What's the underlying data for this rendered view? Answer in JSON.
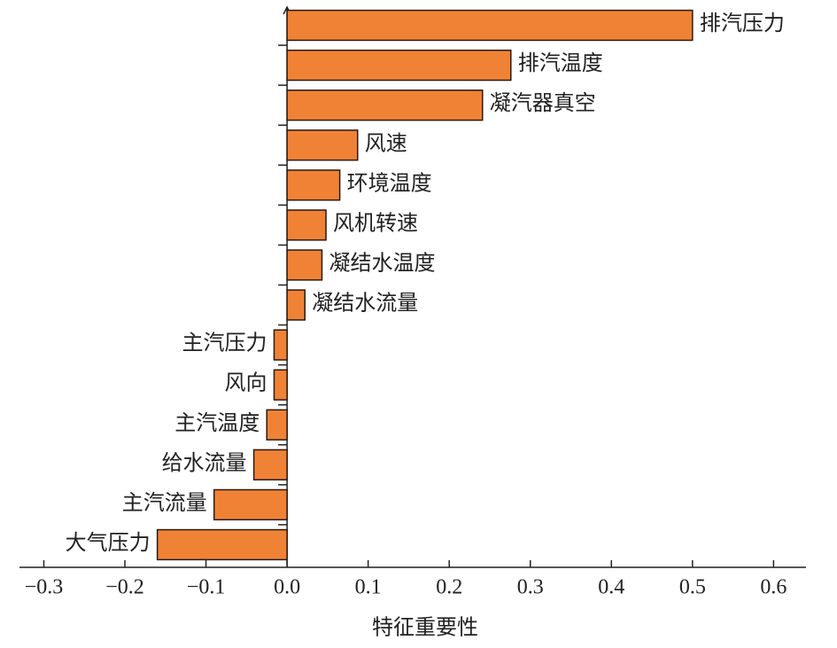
{
  "chart_data": {
    "type": "barh",
    "x_label": "特征重要性",
    "categories": [
      "排汽压力",
      "排汽温度",
      "凝汽器真空",
      "风速",
      "环境温度",
      "风机转速",
      "凝结水温度",
      "凝结水流量",
      "主汽压力",
      "风向",
      "主汽温度",
      "给水流量",
      "主汽流量",
      "大气压力"
    ],
    "values": [
      0.5,
      0.276,
      0.241,
      0.087,
      0.065,
      0.048,
      0.043,
      0.022,
      -0.016,
      -0.016,
      -0.025,
      -0.041,
      -0.09,
      -0.16
    ],
    "color": "#f08236",
    "xlim": [
      -0.33,
      0.64
    ],
    "xticks": [
      {
        "value": -0.3,
        "label": "−0.3"
      },
      {
        "value": -0.2,
        "label": "−0.2"
      },
      {
        "value": -0.1,
        "label": "−0.1"
      },
      {
        "value": 0,
        "label": "0.0"
      },
      0.1,
      0.2,
      0.3,
      0.4,
      0.5,
      0.6
    ],
    "grid": false
  }
}
